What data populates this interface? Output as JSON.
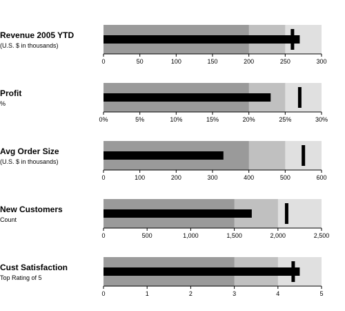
{
  "chart_data": [
    {
      "type": "bullet",
      "title": "Revenue 2005 YTD",
      "subtitle": "(U.S. $ in thousands)",
      "ranges": [
        200,
        250,
        300
      ],
      "measure": 270,
      "target": 260,
      "xlim": [
        0,
        300
      ],
      "ticks": [
        0,
        50,
        100,
        150,
        200,
        250,
        300
      ],
      "tick_labels": [
        "0",
        "50",
        "100",
        "150",
        "200",
        "250",
        "300"
      ]
    },
    {
      "type": "bullet",
      "title": "Profit",
      "subtitle": "%",
      "ranges": [
        20,
        25,
        30
      ],
      "measure": 23,
      "target": 27,
      "xlim": [
        0,
        30
      ],
      "ticks": [
        0,
        5,
        10,
        15,
        20,
        25,
        30
      ],
      "tick_labels": [
        "0%",
        "5%",
        "10%",
        "15%",
        "20%",
        "25%",
        "30%"
      ]
    },
    {
      "type": "bullet",
      "title": "Avg Order Size",
      "subtitle": "(U.S. $ in thousands)",
      "ranges": [
        400,
        500,
        600
      ],
      "measure": 330,
      "target": 550,
      "xlim": [
        0,
        600
      ],
      "ticks": [
        0,
        100,
        200,
        300,
        400,
        500,
        600
      ],
      "tick_labels": [
        "0",
        "100",
        "200",
        "300",
        "400",
        "500",
        "600"
      ]
    },
    {
      "type": "bullet",
      "title": "New Customers",
      "subtitle": "Count",
      "ranges": [
        1500,
        2000,
        2500
      ],
      "measure": 1700,
      "target": 2100,
      "xlim": [
        0,
        2500
      ],
      "ticks": [
        0,
        500,
        1000,
        1500,
        2000,
        2500
      ],
      "tick_labels": [
        "0",
        "500",
        "1,000",
        "1,500",
        "2,000",
        "2,500"
      ]
    },
    {
      "type": "bullet",
      "title": "Cust Satisfaction",
      "subtitle": "Top Rating of 5",
      "ranges": [
        3,
        4,
        5
      ],
      "measure": 4.5,
      "target": 4.35,
      "xlim": [
        0,
        5
      ],
      "ticks": [
        0,
        1,
        2,
        3,
        4,
        5
      ],
      "tick_labels": [
        "0",
        "1",
        "2",
        "3",
        "4",
        "5"
      ]
    }
  ],
  "colors": {
    "range_poor": "#9a9a9a",
    "range_satisfactory": "#c0c0c0",
    "range_good": "#e0e0e0",
    "measure": "#000000",
    "target": "#000000",
    "axis": "#000000"
  }
}
